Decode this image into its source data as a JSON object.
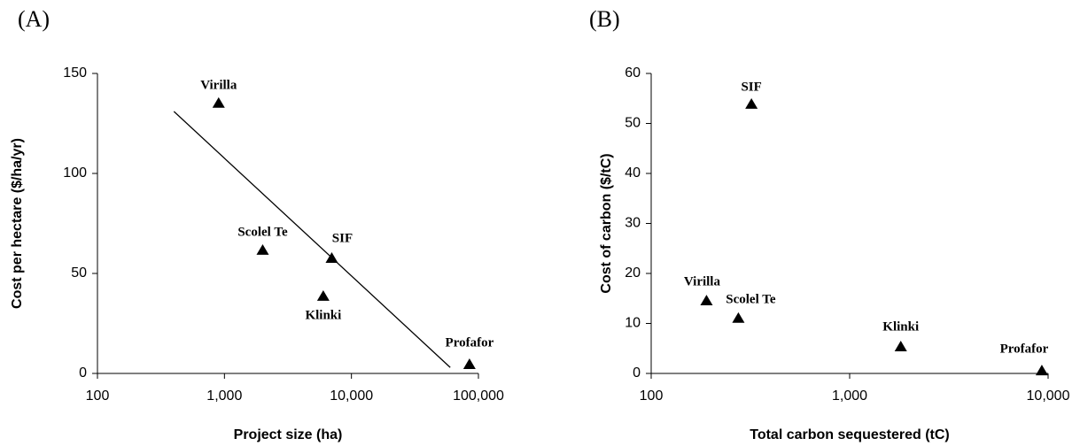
{
  "chart_data": [
    {
      "type": "scatter",
      "panel": "(A)",
      "x_label": "Project size (ha)",
      "y_label": "Cost per hectare ($/ha/yr)",
      "x": [
        900,
        2000,
        7000,
        6000,
        85000
      ],
      "values": [
        135,
        61.5,
        57.5,
        38.5,
        4.4
      ],
      "point_labels": [
        "Virilla",
        "Scolel Te",
        "SIF",
        "Klinki",
        "Profafor"
      ],
      "color": "#000000",
      "log_x": true,
      "xlim": [
        100,
        100000
      ],
      "xticks": [
        100,
        {
          "value": 1000,
          "label": "1,000"
        },
        {
          "value": 10000,
          "label": "10,000"
        },
        {
          "value": 100000,
          "label": "100,000"
        }
      ],
      "ylim": [
        0,
        150
      ],
      "yticks": [
        0,
        50,
        100,
        150
      ],
      "trendline": {
        "x": [
          400,
          60000
        ],
        "values": [
          131,
          3
        ]
      }
    },
    {
      "type": "scatter",
      "panel": "(B)",
      "x_label": "Total carbon sequestered (tC)",
      "y_label": "Cost of carbon ($/tC)",
      "x": [
        320,
        190,
        275,
        1810,
        9300
      ],
      "values": [
        53.8,
        14.5,
        11,
        5.3,
        0.5
      ],
      "point_labels": [
        "SIF",
        "Virilla",
        "Scolel Te",
        "Klinki",
        "Profafor"
      ],
      "color": "#000000",
      "log_x": true,
      "xlim": [
        100,
        10000
      ],
      "xticks": [
        100,
        {
          "value": 1000,
          "label": "1,000"
        },
        {
          "value": 10000,
          "label": "10,000"
        }
      ],
      "ylim": [
        0,
        60
      ],
      "yticks": [
        0,
        10,
        20,
        30,
        40,
        50,
        60
      ]
    }
  ]
}
